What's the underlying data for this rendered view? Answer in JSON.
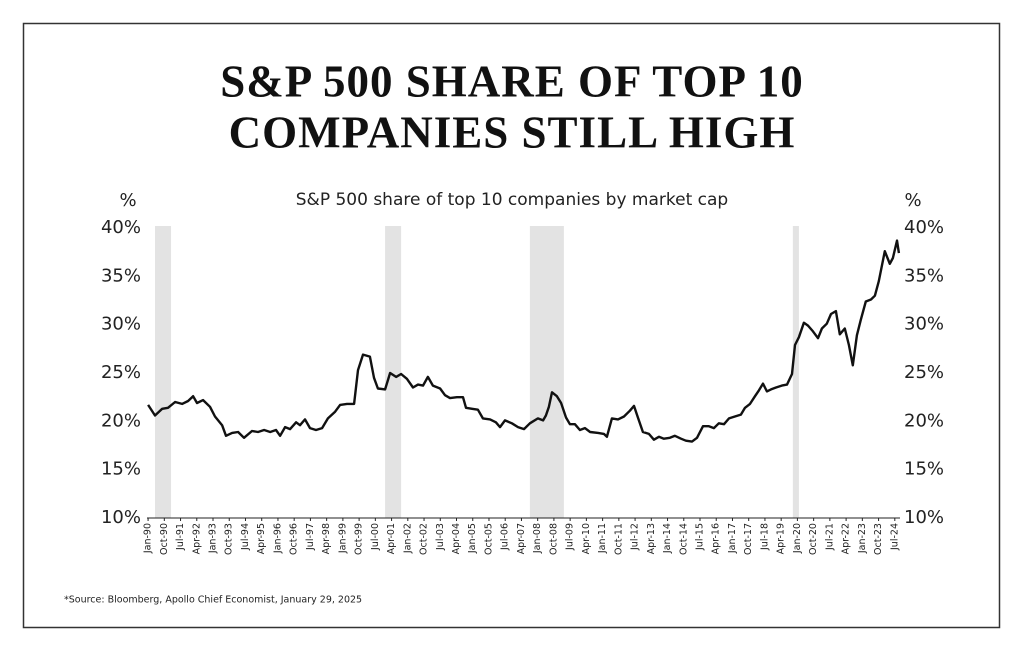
{
  "chart_data": {
    "type": "line",
    "title": [
      "S&P 500 SHARE OF TOP 10",
      "COMPANIES STILL HIGH"
    ],
    "subtitle": "S&P 500 share of top 10 companies by market cap",
    "y_axis_label": "%",
    "y2_axis_label": "%",
    "source": "*Source: Bloomberg, Apollo Chief Economist, January 29, 2025",
    "color": "#111111",
    "shade_color": "#e3e3e3",
    "shaded_regions": [
      [
        1990.32,
        1991.06
      ],
      [
        2000.95,
        2001.69
      ],
      [
        2007.64,
        2009.21
      ],
      [
        2019.79,
        2020.07
      ]
    ],
    "x": [
      1990.0,
      1990.32,
      1990.65,
      1990.92,
      1991.25,
      1991.57,
      1991.85,
      1992.08,
      1992.26,
      1992.54,
      1992.86,
      1993.09,
      1993.42,
      1993.6,
      1993.88,
      1994.16,
      1994.43,
      1994.8,
      1995.08,
      1995.36,
      1995.64,
      1995.91,
      1996.1,
      1996.33,
      1996.56,
      1996.84,
      1997.02,
      1997.25,
      1997.48,
      1997.76,
      1998.04,
      1998.31,
      1998.64,
      1998.87,
      1999.19,
      1999.52,
      1999.7,
      1999.93,
      2000.25,
      2000.44,
      2000.62,
      2000.95,
      2001.18,
      2001.46,
      2001.69,
      2001.96,
      2002.24,
      2002.47,
      2002.7,
      2002.93,
      2003.16,
      2003.49,
      2003.72,
      2003.95,
      2004.27,
      2004.55,
      2004.69,
      2004.97,
      2005.24,
      2005.47,
      2005.8,
      2006.07,
      2006.26,
      2006.49,
      2006.81,
      2007.09,
      2007.37,
      2007.64,
      2008.01,
      2008.25,
      2008.38,
      2008.52,
      2008.66,
      2008.89,
      2009.08,
      2009.31,
      2009.49,
      2009.72,
      2009.95,
      2010.18,
      2010.42,
      2010.79,
      2011.06,
      2011.2,
      2011.43,
      2011.71,
      2011.99,
      2012.26,
      2012.45,
      2012.63,
      2012.86,
      2013.14,
      2013.37,
      2013.6,
      2013.83,
      2014.11,
      2014.34,
      2014.62,
      2014.85,
      2015.13,
      2015.36,
      2015.64,
      2015.91,
      2016.14,
      2016.37,
      2016.61,
      2016.84,
      2017.11,
      2017.39,
      2017.58,
      2017.81,
      2018.04,
      2018.22,
      2018.41,
      2018.59,
      2018.78,
      2019.01,
      2019.28,
      2019.52,
      2019.75,
      2019.89,
      2020.07,
      2020.3,
      2020.49,
      2020.72,
      2020.95,
      2021.13,
      2021.36,
      2021.55,
      2021.78,
      2021.96,
      2022.19,
      2022.38,
      2022.56,
      2022.75,
      2022.93,
      2023.16,
      2023.4,
      2023.58,
      2023.76,
      2024.04,
      2024.27,
      2024.41,
      2024.6,
      2024.69
    ],
    "values": [
      21.7,
      20.6,
      21.3,
      21.4,
      22.0,
      21.8,
      22.1,
      22.6,
      21.9,
      22.2,
      21.5,
      20.5,
      19.6,
      18.5,
      18.8,
      18.9,
      18.3,
      19.0,
      18.9,
      19.1,
      18.9,
      19.1,
      18.5,
      19.4,
      19.2,
      19.9,
      19.6,
      20.2,
      19.3,
      19.1,
      19.3,
      20.3,
      21.0,
      21.7,
      21.8,
      21.8,
      25.3,
      26.9,
      26.7,
      24.5,
      23.4,
      23.3,
      25.0,
      24.6,
      24.9,
      24.4,
      23.5,
      23.8,
      23.7,
      24.6,
      23.7,
      23.4,
      22.7,
      22.4,
      22.5,
      22.5,
      21.4,
      21.3,
      21.2,
      20.3,
      20.2,
      19.9,
      19.4,
      20.1,
      19.8,
      19.4,
      19.2,
      19.8,
      20.3,
      20.1,
      20.6,
      21.5,
      23.0,
      22.6,
      21.9,
      20.4,
      19.7,
      19.7,
      19.1,
      19.3,
      18.9,
      18.8,
      18.7,
      18.4,
      20.3,
      20.2,
      20.5,
      21.1,
      21.6,
      20.4,
      18.9,
      18.7,
      18.1,
      18.4,
      18.2,
      18.3,
      18.5,
      18.2,
      18.0,
      17.9,
      18.3,
      19.5,
      19.5,
      19.3,
      19.8,
      19.7,
      20.3,
      20.5,
      20.7,
      21.4,
      21.8,
      22.6,
      23.2,
      23.9,
      23.1,
      23.3,
      23.5,
      23.7,
      23.8,
      24.9,
      27.9,
      28.7,
      30.2,
      29.9,
      29.3,
      28.6,
      29.6,
      30.1,
      31.1,
      31.4,
      29.0,
      29.6,
      27.9,
      25.8,
      28.9,
      30.5,
      32.4,
      32.6,
      33.0,
      34.5,
      37.6,
      36.3,
      36.9,
      38.7,
      37.4
    ],
    "xlim": [
      1989.95,
      2024.74
    ],
    "xticks": [
      {
        "value": 1990.0,
        "label": "Jan-90"
      },
      {
        "value": 1990.75,
        "label": "Oct-90"
      },
      {
        "value": 1991.5,
        "label": "Jul-91"
      },
      {
        "value": 1992.25,
        "label": "Apr-92"
      },
      {
        "value": 1993.0,
        "label": "Jan-93"
      },
      {
        "value": 1993.75,
        "label": "Oct-93"
      },
      {
        "value": 1994.5,
        "label": "Jul-94"
      },
      {
        "value": 1995.25,
        "label": "Apr-95"
      },
      {
        "value": 1996.0,
        "label": "Jan-96"
      },
      {
        "value": 1996.75,
        "label": "Oct-96"
      },
      {
        "value": 1997.5,
        "label": "Jul-97"
      },
      {
        "value": 1998.25,
        "label": "Apr-98"
      },
      {
        "value": 1999.0,
        "label": "Jan-99"
      },
      {
        "value": 1999.75,
        "label": "Oct-99"
      },
      {
        "value": 2000.5,
        "label": "Jul-00"
      },
      {
        "value": 2001.25,
        "label": "Apr-01"
      },
      {
        "value": 2002.0,
        "label": "Jan-02"
      },
      {
        "value": 2002.75,
        "label": "Oct-02"
      },
      {
        "value": 2003.5,
        "label": "Jul-03"
      },
      {
        "value": 2004.25,
        "label": "Apr-04"
      },
      {
        "value": 2005.0,
        "label": "Jan-05"
      },
      {
        "value": 2005.75,
        "label": "Oct-05"
      },
      {
        "value": 2006.5,
        "label": "Jul-06"
      },
      {
        "value": 2007.25,
        "label": "Apr-07"
      },
      {
        "value": 2008.0,
        "label": "Jan-08"
      },
      {
        "value": 2008.75,
        "label": "Oct-08"
      },
      {
        "value": 2009.5,
        "label": "Jul-09"
      },
      {
        "value": 2010.25,
        "label": "Apr-10"
      },
      {
        "value": 2011.0,
        "label": "Jan-11"
      },
      {
        "value": 2011.75,
        "label": "Oct-11"
      },
      {
        "value": 2012.5,
        "label": "Jul-12"
      },
      {
        "value": 2013.25,
        "label": "Apr-13"
      },
      {
        "value": 2014.0,
        "label": "Jan-14"
      },
      {
        "value": 2014.75,
        "label": "Oct-14"
      },
      {
        "value": 2015.5,
        "label": "Jul-15"
      },
      {
        "value": 2016.25,
        "label": "Apr-16"
      },
      {
        "value": 2017.0,
        "label": "Jan-17"
      },
      {
        "value": 2017.75,
        "label": "Oct-17"
      },
      {
        "value": 2018.5,
        "label": "Jul-18"
      },
      {
        "value": 2019.25,
        "label": "Apr-19"
      },
      {
        "value": 2020.0,
        "label": "Jan-20"
      },
      {
        "value": 2020.75,
        "label": "Oct-20"
      },
      {
        "value": 2021.5,
        "label": "Jul-21"
      },
      {
        "value": 2022.25,
        "label": "Apr-22"
      },
      {
        "value": 2023.0,
        "label": "Jan-23"
      },
      {
        "value": 2023.75,
        "label": "Oct-23"
      },
      {
        "value": 2024.5,
        "label": "Jul-24"
      }
    ],
    "ylim": [
      10,
      40
    ],
    "yticks": [
      {
        "value": 10,
        "label": "10%"
      },
      {
        "value": 15,
        "label": "15%"
      },
      {
        "value": 20,
        "label": "20%"
      },
      {
        "value": 25,
        "label": "25%"
      },
      {
        "value": 30,
        "label": "30%"
      },
      {
        "value": 35,
        "label": "35%"
      },
      {
        "value": 40,
        "label": "40%"
      }
    ],
    "y2lim": [
      10,
      40
    ],
    "y2ticks": [
      {
        "value": 10,
        "label": "10%"
      },
      {
        "value": 15,
        "label": "15%"
      },
      {
        "value": 20,
        "label": "20%"
      },
      {
        "value": 25,
        "label": "25%"
      },
      {
        "value": 30,
        "label": "30%"
      },
      {
        "value": 35,
        "label": "35%"
      },
      {
        "value": 40,
        "label": "40%"
      }
    ],
    "grid": false
  }
}
